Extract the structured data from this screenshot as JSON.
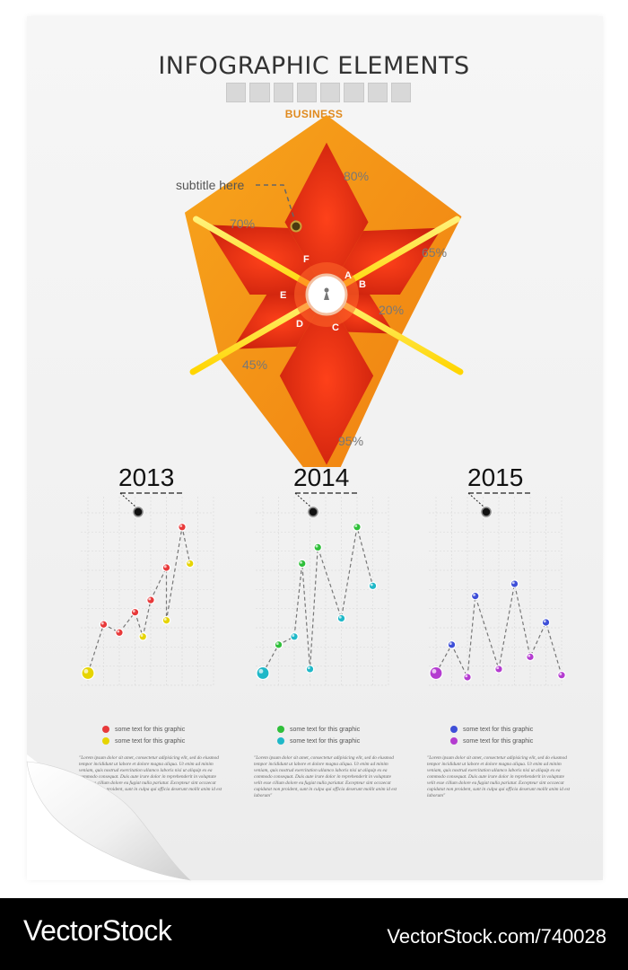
{
  "header": {
    "title": "INFOGRAPHIC ELEMENTS",
    "subtitle": "BUSINESS",
    "box_count": 8
  },
  "pie_note": "subtitle here",
  "chart_data": [
    {
      "type": "pie",
      "title": "",
      "categories": [
        "A",
        "B",
        "C",
        "D",
        "E",
        "F"
      ],
      "values": [
        80,
        65,
        20,
        95,
        45,
        70
      ],
      "value_labels": [
        "80%",
        "65%",
        "20%",
        "95%",
        "45%",
        "70%"
      ],
      "colors": {
        "light": "#f07e10",
        "dark": "#c8180c",
        "rod": "#ffd500",
        "center": "#ffffff"
      }
    },
    {
      "type": "line",
      "title": "2013",
      "series": [
        {
          "name": "",
          "color": "#e8393a",
          "x": [
            1,
            2,
            3,
            4,
            5,
            6
          ],
          "values": [
            3.0,
            2.6,
            3.6,
            4.2,
            5.8,
            7.8
          ]
        },
        {
          "name": "",
          "color": "#e6d400",
          "x": [
            0,
            3.5,
            5,
            6.5
          ],
          "values": [
            0.6,
            2.4,
            3.2,
            6.0
          ]
        }
      ],
      "legend": [
        "some text for this graphic",
        "some text for this graphic"
      ],
      "text": "\"Lorem ipsum dolor sit amet, consectetur adipisicing elit, sed do eiusmod tempor incididunt ut labore et dolore magna aliqua. Ut enim ad minim veniam, quis nostrud exercitation ullamco laboris nisi ut aliquip ex ea commodo consequat. Duis aute irure dolor in reprehenderit in voluptate velit esse cillum dolore eu fugiat nulla pariatur. Excepteur sint occaecat cupidatat non proident, sunt in culpa qui officia deserunt mollit anim id est laborum\""
    },
    {
      "type": "line",
      "title": "2014",
      "series": [
        {
          "name": "",
          "color": "#2fbf3a",
          "x": [
            1,
            2.5,
            3.5,
            6
          ],
          "values": [
            2.0,
            6.0,
            6.8,
            7.8
          ]
        },
        {
          "name": "",
          "color": "#1fb8c8",
          "x": [
            0,
            2,
            3,
            5,
            7
          ],
          "values": [
            0.6,
            2.4,
            0.8,
            3.3,
            4.9
          ]
        }
      ],
      "legend": [
        "some text for this graphic",
        "some text for this graphic"
      ],
      "text": "\"Lorem ipsum dolor sit amet, consectetur adipisicing elit, sed do eiusmod tempor incididunt ut labore et dolore magna aliqua. Ut enim ad minim veniam, quis nostrud exercitation ullamco laboris nisi ut aliquip ex ea commodo consequat. Duis aute irure dolor in reprehenderit in voluptate velit esse cillum dolore eu fugiat nulla pariatur. Excepteur sint occaecat cupidatat non proident, sunt in culpa qui officia deserunt mollit anim id est laborum\""
    },
    {
      "type": "line",
      "title": "2015",
      "series": [
        {
          "name": "",
          "color": "#3e4fd8",
          "x": [
            1,
            2.5,
            5,
            7
          ],
          "values": [
            2.0,
            4.4,
            5.0,
            3.1
          ]
        },
        {
          "name": "",
          "color": "#b43cd0",
          "x": [
            0,
            2,
            4,
            6,
            8
          ],
          "values": [
            0.6,
            0.4,
            0.8,
            1.4,
            0.5
          ]
        }
      ],
      "legend": [
        "some text for this graphic",
        "some text for this graphic"
      ],
      "text": "\"Lorem ipsum dolor sit amet, consectetur adipisicing elit, sed do eiusmod tempor incididunt ut labore et dolore magna aliqua. Ut enim ad minim veniam, quis nostrud exercitation ullamco laboris nisi ut aliquip ex ea commodo consequat. Duis aute irure dolor in reprehenderit in voluptate velit esse cillum dolore eu fugiat nulla pariatur. Excepteur sint occaecat cupidatat non proident, sunt in culpa qui officia deserunt mollit anim id est laborum\""
    }
  ],
  "footer": {
    "brand": "VectorStock",
    "url": "VectorStock.com/740028"
  }
}
